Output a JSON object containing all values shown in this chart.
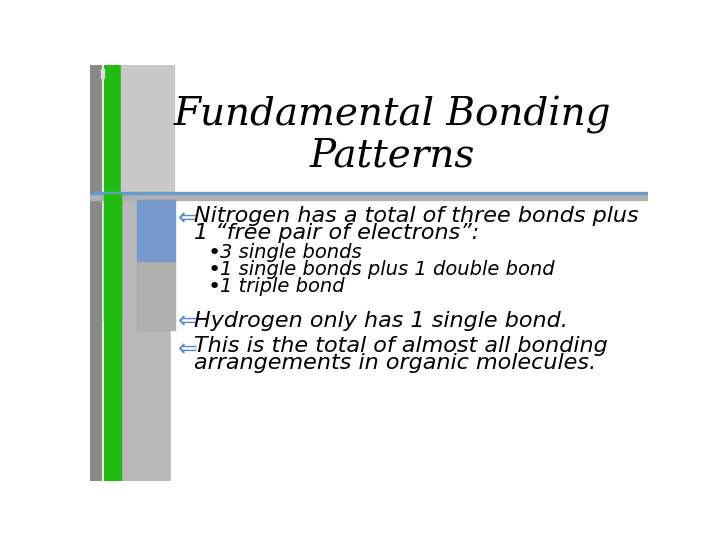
{
  "title_line1": "Fundamental Bonding",
  "title_line2": "Patterns",
  "title_fontsize": 28,
  "bg_color": "#f0f0f0",
  "separator_color": "#6699cc",
  "bullet_color": "#5588cc",
  "bullet1_text1": "Nitrogen has a total of three bonds plus",
  "bullet1_text2": "1 “free pair of electrons”:",
  "sub_bullets": [
    "3 single bonds",
    "1 single bonds plus 1 double bond",
    "1 triple bond"
  ],
  "bullet2_text": "Hydrogen only has 1 single bond.",
  "bullet3_text1": "This is the total of almost all bonding",
  "bullet3_text2": "arrangements in organic molecules.",
  "text_color": "#000000",
  "font_size_main": 16,
  "font_size_sub": 14,
  "col_dark_gray": "#888888",
  "col_mid_gray": "#b0b0b0",
  "col_green": "#22bb11",
  "col_blue_rect": "#7799cc",
  "col_light_gray": "#c0c0c0"
}
